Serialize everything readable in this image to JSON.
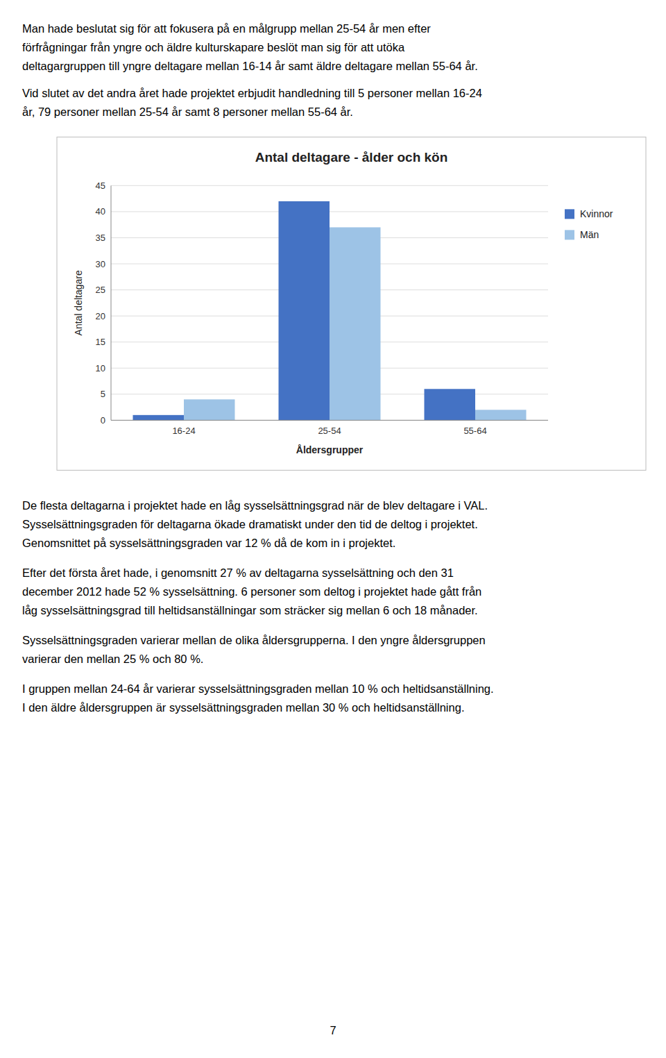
{
  "chart_data": {
    "type": "bar",
    "title": "Antal deltagare - ålder och kön",
    "categories": [
      "16-24",
      "25-54",
      "55-64"
    ],
    "series": [
      {
        "name": "Kvinnor",
        "color": "#4472C4",
        "values": [
          1,
          42,
          6
        ]
      },
      {
        "name": "Män",
        "color": "#9DC3E6",
        "values": [
          4,
          37,
          2
        ]
      }
    ],
    "xlabel": "Åldersgrupper",
    "ylabel": "Antal deltagare",
    "ylim": [
      0,
      45
    ],
    "yticks": [
      0,
      5,
      10,
      15,
      20,
      25,
      30,
      35,
      40,
      45
    ],
    "grid": true,
    "legend": "right"
  },
  "text_before": [
    [
      "Man hade beslutat sig för att fokusera på en målgrupp mellan 25-54 år men efter",
      "förfrågningar från yngre och äldre kulturskapare beslöt man sig för att utöka",
      "deltagargruppen till yngre deltagare mellan 16-14 år samt äldre deltagare mellan 55-64 år."
    ],
    [
      "Vid slutet av det andra året hade projektet erbjudit handledning till 5 personer mellan 16-24",
      "år, 79 personer mellan 25-54 år samt 8 personer mellan 55-64 år."
    ]
  ],
  "text_after": [
    [
      "De flesta deltagarna i projektet hade en låg sysselsättningsgrad när de blev deltagare i VAL.",
      "Sysselsättningsgraden för deltagarna ökade dramatiskt under den tid de deltog i projektet.",
      "Genomsnittet på sysselsättningsgraden var 12 % då de kom in i projektet."
    ],
    [
      "Efter det första året hade, i genomsnitt 27 % av deltagarna sysselsättning och den 31",
      "december 2012 hade 52 % sysselsättning. 6 personer som deltog i projektet hade gått från",
      "låg sysselsättningsgrad till heltidsanställningar som sträcker sig mellan 6 och 18 månader."
    ],
    [
      "Sysselsättningsgraden varierar mellan de olika åldersgrupperna. I den yngre åldersgruppen",
      "varierar den mellan 25 % och 80 %."
    ],
    [
      "I gruppen mellan 24-64 år varierar sysselsättningsgraden mellan 10 % och heltidsanställning.",
      "I den äldre åldersgruppen är sysselsättningsgraden mellan 30 % och heltidsanställning."
    ]
  ],
  "page_number": "7"
}
